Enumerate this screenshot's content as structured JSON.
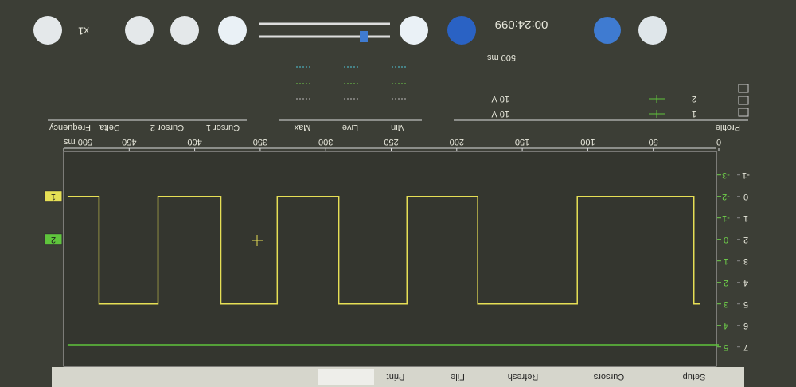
{
  "menu": [
    "Setup",
    "Cursors",
    "Refresh",
    "File",
    "Print"
  ],
  "toolbar": {
    "zoom": "x1",
    "time": "00:24:099"
  },
  "timebase": "500 ms",
  "channels": {
    "header": "Profile",
    "rows": [
      {
        "channel": "1",
        "range": "10 V"
      },
      {
        "channel": "2",
        "range": "10 V"
      }
    ]
  },
  "readings": {
    "columns": [
      "Min",
      "Live",
      "Max"
    ]
  },
  "cursors": {
    "columns": [
      "Cursor 1",
      "Cursor 2",
      "Delta",
      "Frequency"
    ]
  },
  "chart_data": {
    "type": "line",
    "xlim": [
      0,
      500
    ],
    "xticks": [
      0,
      50,
      100,
      150,
      200,
      250,
      300,
      350,
      400,
      450,
      {
        "value": 500,
        "label": "500 ms"
      }
    ],
    "ylim": [
      -2.1,
      7.9
    ],
    "yticks": [
      -1,
      0,
      1,
      2,
      3,
      4,
      5,
      6,
      7
    ],
    "y2lim": [
      -4.1,
      5.9
    ],
    "y2ticks": [
      -3,
      -2,
      -1,
      0,
      1,
      2,
      3,
      4,
      5
    ],
    "series": [
      {
        "name": "1",
        "color": "#e6df55",
        "x": [
          14,
          19,
          19,
          108,
          108,
          184,
          184,
          238,
          238,
          290,
          290,
          337,
          337,
          380,
          380,
          428,
          428,
          473,
          473,
          497
        ],
        "values": [
          5,
          5,
          0,
          0,
          5,
          5,
          0,
          0,
          5,
          5,
          0,
          0,
          5,
          5,
          0,
          0,
          5,
          5,
          0,
          0
        ]
      },
      {
        "name": "2",
        "color": "#5fc43c",
        "axis": "y2",
        "x": [
          0,
          497
        ],
        "values": [
          4.9,
          4.9
        ]
      }
    ]
  }
}
